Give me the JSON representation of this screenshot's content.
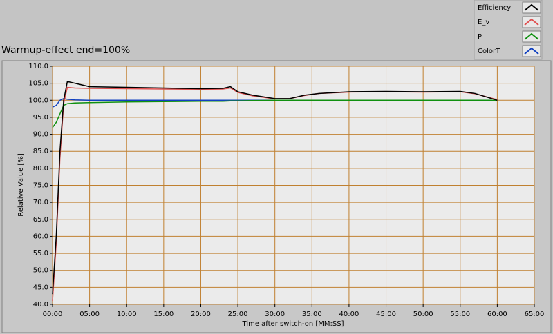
{
  "chart_data": {
    "type": "line",
    "title": "Warmup-effect end=100%",
    "x_label": "Time after switch-on [MM:SS]",
    "y_label": "Relative Value [%]",
    "x": [
      0,
      0.5,
      1,
      1.5,
      2,
      3,
      5,
      10,
      15,
      20,
      23,
      24,
      25,
      27,
      30,
      32,
      34,
      36,
      40,
      45,
      50,
      55,
      57,
      60
    ],
    "series": [
      {
        "name": "Efficiency",
        "color": "#000000",
        "values": [
          43,
          60,
          85,
          100,
          105.5,
          105,
          104,
          103.8,
          103.6,
          103.4,
          103.5,
          104,
          102.5,
          101.5,
          100.5,
          100.5,
          101.5,
          102,
          102.5,
          102.6,
          102.5,
          102.6,
          102,
          100
        ]
      },
      {
        "name": "E_v",
        "color": "#e05050",
        "values": [
          41,
          58,
          83,
          99,
          103.8,
          103.6,
          103.5,
          103.4,
          103.3,
          103.2,
          103.3,
          103.6,
          102.3,
          101.3,
          100.4,
          100.5,
          101.4,
          102,
          102.4,
          102.5,
          102.4,
          102.5,
          101.9,
          100.2
        ]
      },
      {
        "name": "P",
        "color": "#109010",
        "values": [
          92,
          93.5,
          96,
          98.5,
          99,
          99.2,
          99.3,
          99.5,
          99.6,
          99.7,
          99.7,
          99.8,
          99.8,
          99.9,
          100,
          100,
          100,
          100,
          100,
          100,
          100,
          100,
          100,
          100
        ]
      },
      {
        "name": "ColorT",
        "color": "#1040c0",
        "values": [
          98,
          98.5,
          100,
          100.5,
          100.3,
          100.1,
          100,
          100,
          100,
          100,
          100,
          100,
          100,
          100,
          100,
          100,
          100,
          100,
          100,
          100,
          100,
          100,
          100,
          100
        ]
      }
    ],
    "xlim": [
      0,
      65
    ],
    "xticks": [
      {
        "value": 0,
        "label": "00:00"
      },
      {
        "value": 5,
        "label": "05:00"
      },
      {
        "value": 10,
        "label": "10:00"
      },
      {
        "value": 15,
        "label": "15:00"
      },
      {
        "value": 20,
        "label": "20:00"
      },
      {
        "value": 25,
        "label": "25:00"
      },
      {
        "value": 30,
        "label": "30:00"
      },
      {
        "value": 35,
        "label": "35:00"
      },
      {
        "value": 40,
        "label": "40:00"
      },
      {
        "value": 45,
        "label": "45:00"
      },
      {
        "value": 50,
        "label": "50:00"
      },
      {
        "value": 55,
        "label": "55:00"
      },
      {
        "value": 60,
        "label": "60:00"
      },
      {
        "value": 65,
        "label": "65:00"
      }
    ],
    "ylim": [
      40,
      110
    ],
    "yticks": [
      {
        "value": 40,
        "label": "40.0"
      },
      {
        "value": 45,
        "label": "45.0"
      },
      {
        "value": 50,
        "label": "50.0"
      },
      {
        "value": 55,
        "label": "55.0"
      },
      {
        "value": 60,
        "label": "60.0"
      },
      {
        "value": 65,
        "label": "65.0"
      },
      {
        "value": 70,
        "label": "70.0"
      },
      {
        "value": 75,
        "label": "75.0"
      },
      {
        "value": 80,
        "label": "80.0"
      },
      {
        "value": 85,
        "label": "85.0"
      },
      {
        "value": 90,
        "label": "90.0"
      },
      {
        "value": 95,
        "label": "95.0"
      },
      {
        "value": 100,
        "label": "100.0"
      },
      {
        "value": 105,
        "label": "105.0"
      },
      {
        "value": 110,
        "label": "110.0"
      }
    ],
    "grid": true,
    "grid_color": "#c08030",
    "legend": "top-right"
  }
}
